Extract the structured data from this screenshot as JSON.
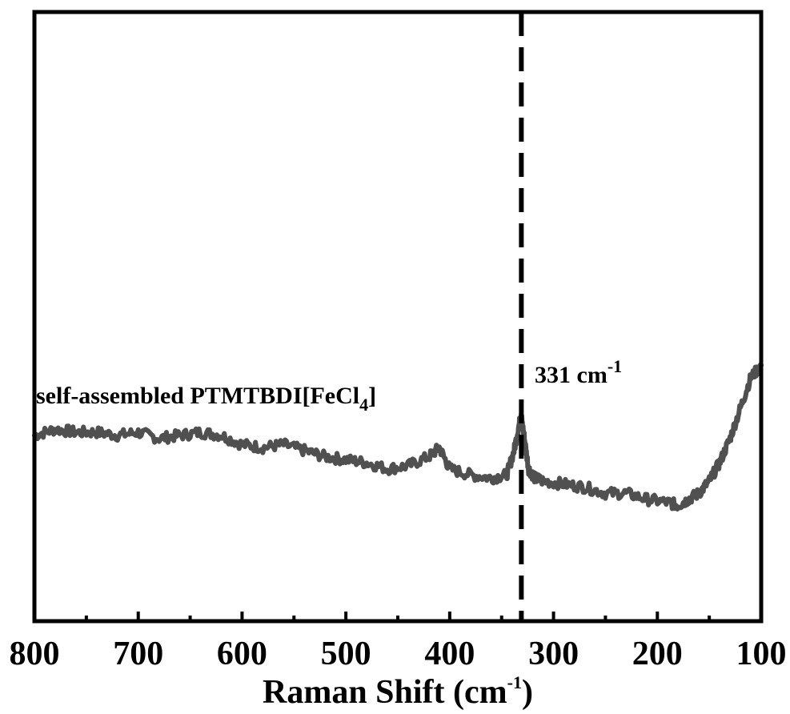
{
  "chart_data": {
    "type": "line",
    "title": "",
    "xlabel": "Raman Shift (cm",
    "xlabel_sup": "-1",
    "xlabel_close": ")",
    "ylabel": "",
    "xlim": [
      800,
      100
    ],
    "x_reversed": true,
    "y_ticks_shown": false,
    "grid": false,
    "x_ticks": [
      800,
      700,
      600,
      500,
      400,
      300,
      200,
      100
    ],
    "x_tick_labels": [
      "800",
      "700",
      "600",
      "500",
      "400",
      "300",
      "200",
      "100"
    ],
    "ylim": [
      0,
      1
    ],
    "series": [
      {
        "color": "#505050",
        "x": [
          800,
          780,
          760,
          740,
          720,
          700,
          680,
          660,
          640,
          620,
          600,
          580,
          560,
          540,
          520,
          500,
          480,
          460,
          440,
          420,
          410,
          400,
          380,
          360,
          345,
          338,
          333,
          331,
          328,
          324,
          318,
          310,
          290,
          270,
          250,
          230,
          210,
          190,
          180,
          170,
          160,
          150,
          140,
          130,
          120,
          110,
          100
        ],
        "y": [
          0.305,
          0.315,
          0.31,
          0.31,
          0.305,
          0.31,
          0.3,
          0.305,
          0.31,
          0.305,
          0.29,
          0.285,
          0.29,
          0.28,
          0.27,
          0.265,
          0.26,
          0.25,
          0.255,
          0.27,
          0.285,
          0.25,
          0.24,
          0.235,
          0.24,
          0.28,
          0.325,
          0.335,
          0.3,
          0.25,
          0.235,
          0.23,
          0.225,
          0.22,
          0.21,
          0.21,
          0.2,
          0.195,
          0.19,
          0.2,
          0.21,
          0.23,
          0.26,
          0.3,
          0.35,
          0.4,
          0.42
        ]
      }
    ],
    "reference_line": {
      "x": 331,
      "style": "dashed",
      "color": "#000000"
    },
    "annotations": {
      "peak_label": "331 cm",
      "peak_label_sup": "-1",
      "sample_label": "self-assembled PTMTBDI[FeCl",
      "sample_label_sub": "4",
      "sample_label_close": "]"
    }
  }
}
